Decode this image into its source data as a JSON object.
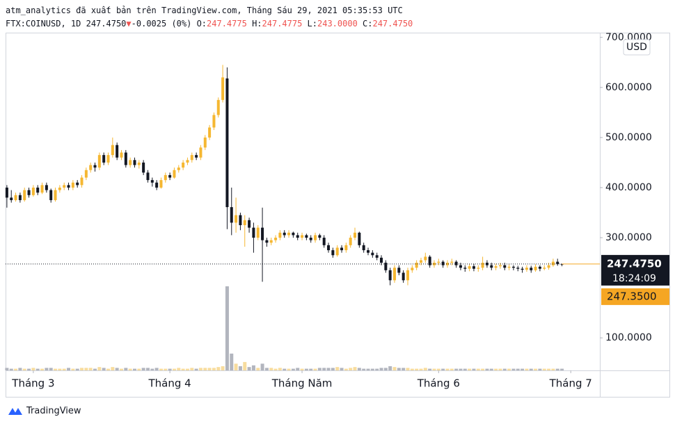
{
  "header": {
    "line1": "atm_analytics đã xuất bản trên TradingView.com, Tháng Sáu 29, 2021 05:35:53 UTC",
    "symbol": "FTX:COINUSD, 1D",
    "last": "247.4750",
    "change": "-0.0025 (0%)",
    "o_label": "O:",
    "o": "247.4775",
    "h_label": "H:",
    "h": "247.4775",
    "l_label": "L:",
    "l": "243.0000",
    "c_label": "C:",
    "c": "247.4750"
  },
  "footer": {
    "brand": "TradingView"
  },
  "chart_data": {
    "type": "candlestick",
    "currency": "USD",
    "up_color": "#f5b731",
    "down_color": "#131722",
    "volume_up_color": "#f7dc9e",
    "volume_down_color": "#b2b5be",
    "x": [
      54,
      55,
      56,
      57,
      58,
      59,
      60,
      61,
      62,
      63,
      64,
      65,
      66,
      67,
      68,
      69,
      70,
      71,
      72,
      73,
      74,
      75,
      76,
      77,
      78,
      79,
      80,
      81,
      82,
      83,
      84,
      85,
      86,
      87,
      88,
      89,
      90,
      91,
      92,
      93,
      94,
      95,
      96,
      97,
      98,
      99,
      100,
      101,
      102,
      103,
      104,
      105,
      106,
      107,
      108,
      109,
      110,
      111,
      112,
      113,
      114,
      115,
      116,
      117,
      118,
      119,
      120,
      121,
      122,
      123,
      124,
      125,
      126,
      127,
      128,
      129,
      130,
      131,
      132,
      133,
      134,
      135,
      136,
      137,
      138,
      139,
      140,
      141,
      142,
      143,
      144,
      145,
      146,
      147,
      148,
      149,
      150,
      151,
      152,
      153,
      154,
      155,
      156,
      157,
      158,
      159,
      160,
      161,
      162,
      163,
      164,
      165,
      166,
      167,
      168,
      169,
      170,
      171,
      172,
      173,
      174,
      175,
      176,
      177,
      178,
      179,
      180
    ],
    "open": [
      400,
      380,
      375,
      385,
      375,
      395,
      385,
      400,
      390,
      405,
      395,
      375,
      395,
      400,
      405,
      400,
      410,
      405,
      420,
      435,
      445,
      440,
      465,
      450,
      465,
      485,
      460,
      470,
      445,
      455,
      445,
      450,
      430,
      415,
      410,
      400,
      415,
      425,
      420,
      435,
      440,
      450,
      455,
      465,
      460,
      480,
      500,
      520,
      545,
      575,
      618,
      361,
      330,
      345,
      325,
      335,
      320,
      300,
      320,
      295,
      290,
      295,
      300,
      310,
      305,
      310,
      305,
      300,
      305,
      300,
      295,
      305,
      300,
      285,
      275,
      265,
      280,
      275,
      285,
      300,
      310,
      285,
      275,
      270,
      265,
      260,
      250,
      235,
      215,
      240,
      230,
      215,
      235,
      240,
      250,
      255,
      262,
      245,
      250,
      252,
      245,
      250,
      252,
      245,
      240,
      238,
      243,
      238,
      240,
      250,
      245,
      240,
      243,
      245,
      240,
      242,
      240,
      238,
      236,
      240,
      235,
      242,
      238,
      240,
      245,
      252,
      247.4775
    ],
    "high": [
      405,
      395,
      390,
      390,
      400,
      400,
      405,
      405,
      410,
      410,
      398,
      400,
      405,
      410,
      410,
      415,
      415,
      425,
      440,
      450,
      450,
      470,
      470,
      470,
      500,
      490,
      475,
      475,
      460,
      460,
      455,
      455,
      435,
      420,
      415,
      420,
      430,
      430,
      440,
      445,
      455,
      460,
      470,
      470,
      485,
      505,
      525,
      550,
      580,
      645,
      640,
      400,
      380,
      350,
      345,
      340,
      330,
      325,
      360,
      300,
      300,
      305,
      315,
      315,
      315,
      312,
      310,
      310,
      308,
      305,
      310,
      308,
      305,
      290,
      280,
      285,
      285,
      290,
      305,
      320,
      312,
      290,
      280,
      275,
      270,
      265,
      255,
      240,
      245,
      245,
      235,
      240,
      245,
      255,
      260,
      270,
      265,
      255,
      258,
      255,
      255,
      258,
      255,
      250,
      245,
      248,
      248,
      245,
      262,
      255,
      250,
      248,
      250,
      250,
      247,
      245,
      244,
      242,
      245,
      244,
      247,
      245,
      245,
      250,
      258,
      258,
      247.4775
    ],
    "low": [
      360,
      370,
      372,
      370,
      372,
      380,
      382,
      385,
      387,
      390,
      370,
      372,
      390,
      395,
      395,
      395,
      400,
      400,
      415,
      430,
      432,
      435,
      445,
      445,
      460,
      455,
      455,
      440,
      440,
      440,
      438,
      425,
      410,
      402,
      395,
      398,
      410,
      415,
      418,
      430,
      435,
      445,
      450,
      455,
      455,
      475,
      495,
      515,
      540,
      570,
      317,
      305,
      310,
      315,
      282,
      310,
      270,
      295,
      212,
      282,
      285,
      290,
      295,
      300,
      300,
      300,
      295,
      295,
      295,
      290,
      290,
      295,
      280,
      270,
      260,
      262,
      270,
      270,
      280,
      295,
      280,
      270,
      265,
      260,
      255,
      245,
      230,
      205,
      210,
      225,
      210,
      205,
      230,
      235,
      245,
      250,
      240,
      240,
      245,
      240,
      240,
      245,
      240,
      235,
      232,
      233,
      233,
      232,
      235,
      240,
      235,
      235,
      238,
      235,
      235,
      235,
      233,
      230,
      232,
      230,
      232,
      233,
      235,
      236,
      242,
      244,
      243
    ],
    "close": [
      380,
      375,
      385,
      375,
      395,
      385,
      400,
      390,
      405,
      395,
      375,
      395,
      400,
      405,
      400,
      410,
      405,
      420,
      435,
      445,
      440,
      465,
      450,
      465,
      485,
      460,
      470,
      445,
      455,
      445,
      450,
      430,
      415,
      410,
      400,
      415,
      425,
      420,
      435,
      440,
      450,
      455,
      465,
      460,
      480,
      500,
      520,
      545,
      575,
      620,
      361,
      330,
      345,
      325,
      335,
      320,
      300,
      320,
      295,
      290,
      295,
      300,
      310,
      305,
      310,
      305,
      300,
      305,
      300,
      295,
      305,
      300,
      285,
      275,
      265,
      280,
      275,
      285,
      300,
      310,
      285,
      275,
      270,
      265,
      260,
      250,
      235,
      215,
      240,
      230,
      215,
      235,
      240,
      250,
      255,
      262,
      245,
      250,
      252,
      245,
      250,
      252,
      245,
      240,
      238,
      243,
      238,
      240,
      250,
      245,
      240,
      243,
      245,
      240,
      242,
      240,
      238,
      236,
      240,
      235,
      242,
      238,
      240,
      245,
      252,
      247.4775,
      247.475
    ],
    "volume": [
      3,
      2,
      2,
      3,
      2,
      2,
      3,
      2,
      2,
      3,
      3,
      2,
      2,
      2,
      3,
      2,
      2,
      3,
      3,
      3,
      2,
      4,
      3,
      2,
      4,
      3,
      2,
      3,
      2,
      2,
      2,
      3,
      3,
      2,
      3,
      2,
      2,
      2,
      2,
      3,
      2,
      2,
      3,
      2,
      3,
      3,
      3,
      3,
      4,
      5,
      100,
      20,
      8,
      5,
      10,
      4,
      6,
      3,
      8,
      3,
      3,
      2,
      3,
      2,
      2,
      2,
      3,
      2,
      2,
      2,
      2,
      3,
      3,
      3,
      3,
      4,
      3,
      2,
      3,
      4,
      3,
      2,
      2,
      2,
      2,
      3,
      3,
      5,
      4,
      3,
      3,
      3,
      2,
      2,
      2,
      3,
      2,
      2,
      2,
      2,
      2,
      2,
      2,
      2,
      2,
      2,
      2,
      2,
      2,
      2,
      2,
      2,
      2,
      2,
      2,
      2,
      2,
      2,
      2,
      2,
      2,
      2,
      2,
      2,
      2,
      2,
      2
    ],
    "xlim": [
      53.7,
      188.6
    ],
    "xticks": [
      {
        "value": 60,
        "label": "Tháng 3"
      },
      {
        "value": 91,
        "label": "Tháng 4"
      },
      {
        "value": 121,
        "label": "Tháng Năm"
      },
      {
        "value": 152,
        "label": "Tháng 6"
      },
      {
        "value": 182,
        "label": "Tháng 7"
      }
    ],
    "ylim": [
      35,
      708
    ],
    "yticks": [
      {
        "value": 100,
        "label": "100.0000"
      },
      {
        "value": 300,
        "label": "300.0000"
      },
      {
        "value": 400,
        "label": "400.0000"
      },
      {
        "value": 500,
        "label": "500.0000"
      },
      {
        "value": 600,
        "label": "600.0000"
      },
      {
        "value": 700,
        "label": "700.0000"
      }
    ],
    "last_price_label": "247.4750",
    "countdown": "18:24:09",
    "extra_price": 247.35,
    "extra_price_label": "247.3500",
    "extra_color": "#f5a623"
  }
}
